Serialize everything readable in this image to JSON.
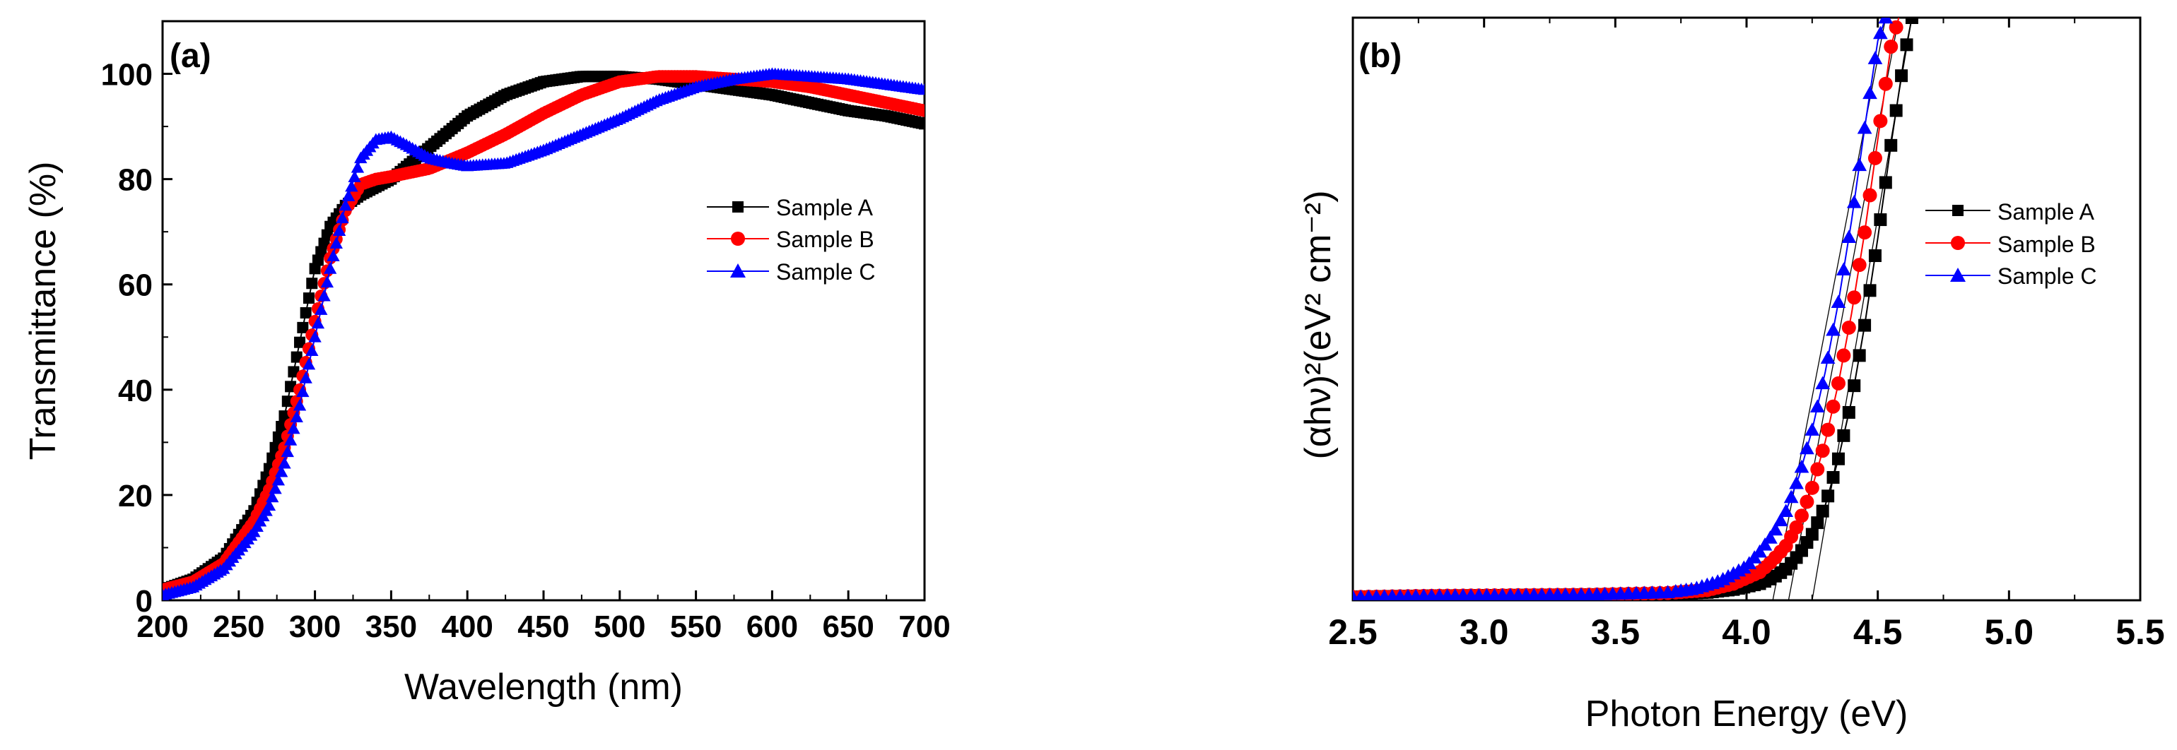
{
  "colors": {
    "sample_a": "#000000",
    "sample_b": "#ff0000",
    "sample_c": "#0000ff"
  },
  "chart_data": [
    {
      "type": "line",
      "panel_label": "(a)",
      "title": "",
      "xlabel": "Wavelength (nm)",
      "ylabel": "Transmittance (%)",
      "xlim": [
        200,
        700
      ],
      "ylim": [
        0,
        110
      ],
      "xticks": [
        "200",
        "250",
        "300",
        "350",
        "400",
        "450",
        "500",
        "550",
        "600",
        "650",
        "700"
      ],
      "yticks": [
        "0",
        "20",
        "40",
        "60",
        "80",
        "100"
      ],
      "xtick_values": [
        200,
        250,
        300,
        350,
        400,
        450,
        500,
        550,
        600,
        650,
        700
      ],
      "ytick_values": [
        0,
        20,
        40,
        60,
        80,
        100
      ],
      "legend_position": "right-upper",
      "series": [
        {
          "name": "Sample A",
          "marker": "square",
          "x": [
            200,
            220,
            240,
            260,
            270,
            280,
            290,
            300,
            310,
            320,
            330,
            340,
            350,
            375,
            400,
            425,
            450,
            475,
            500,
            525,
            550,
            575,
            600,
            625,
            650,
            675,
            700
          ],
          "y": [
            2,
            4,
            8,
            17,
            25,
            35,
            49,
            63,
            71,
            75,
            77,
            78.5,
            80,
            86,
            92,
            96,
            98.5,
            99.5,
            99.5,
            99,
            98,
            97,
            96,
            94.5,
            93,
            92,
            90.5
          ]
        },
        {
          "name": "Sample B",
          "marker": "circle",
          "x": [
            200,
            220,
            240,
            260,
            270,
            280,
            290,
            300,
            310,
            320,
            330,
            340,
            350,
            375,
            400,
            425,
            450,
            475,
            500,
            525,
            550,
            575,
            600,
            625,
            650,
            675,
            700
          ],
          "y": [
            2,
            3.5,
            7,
            15,
            21,
            29,
            40,
            53,
            65,
            74,
            79,
            80,
            80.5,
            82,
            85,
            88.5,
            92.5,
            96,
            98.5,
            99.5,
            99.5,
            99,
            98.5,
            97.5,
            96,
            94.5,
            93
          ]
        },
        {
          "name": "Sample C",
          "marker": "triangle",
          "x": [
            200,
            220,
            240,
            260,
            270,
            280,
            290,
            300,
            310,
            320,
            330,
            340,
            350,
            360,
            375,
            390,
            400,
            425,
            450,
            475,
            500,
            525,
            550,
            575,
            600,
            625,
            650,
            675,
            700
          ],
          "y": [
            1,
            2.5,
            6,
            13,
            18,
            26,
            37,
            50,
            63,
            75,
            84,
            87.5,
            88,
            86.5,
            84,
            83,
            82.5,
            83,
            85.5,
            88.5,
            91.5,
            95,
            97.5,
            99,
            100,
            99.5,
            99,
            98,
            97
          ]
        }
      ]
    },
    {
      "type": "line",
      "panel_label": "(b)",
      "title": "",
      "xlabel": "Photon Energy (eV)",
      "ylabel": "(αhν)²(eV² cm⁻²)",
      "xlim": [
        2.5,
        5.5
      ],
      "ylim": [
        0,
        1
      ],
      "xticks": [
        "2.5",
        "3.0",
        "3.5",
        "4.0",
        "4.5",
        "5.0",
        "5.5"
      ],
      "xtick_values": [
        2.5,
        3.0,
        3.5,
        4.0,
        4.5,
        5.0,
        5.5
      ],
      "yticks": [],
      "legend_position": "right-upper",
      "series": [
        {
          "name": "Sample A",
          "marker": "square",
          "x": [
            2.5,
            2.8,
            3.1,
            3.4,
            3.7,
            3.85,
            3.95,
            4.05,
            4.1,
            4.15,
            4.2,
            4.25,
            4.3,
            4.35,
            4.4,
            4.45,
            4.5,
            4.55,
            4.6,
            4.63
          ],
          "y": [
            0.002,
            0.004,
            0.005,
            0.006,
            0.008,
            0.01,
            0.015,
            0.025,
            0.035,
            0.05,
            0.075,
            0.11,
            0.16,
            0.24,
            0.34,
            0.47,
            0.62,
            0.78,
            0.93,
            1.0
          ]
        },
        {
          "name": "Sample B",
          "marker": "circle",
          "x": [
            2.5,
            2.8,
            3.1,
            3.4,
            3.7,
            3.85,
            3.95,
            4.05,
            4.1,
            4.15,
            4.2,
            4.25,
            4.3,
            4.35,
            4.4,
            4.45,
            4.5,
            4.55,
            4.58
          ],
          "y": [
            0.002,
            0.004,
            0.005,
            0.006,
            0.009,
            0.014,
            0.025,
            0.045,
            0.065,
            0.09,
            0.13,
            0.19,
            0.27,
            0.37,
            0.49,
            0.63,
            0.79,
            0.95,
            1.0
          ]
        },
        {
          "name": "Sample C",
          "marker": "triangle",
          "x": [
            2.5,
            2.8,
            3.1,
            3.4,
            3.7,
            3.8,
            3.9,
            4.0,
            4.05,
            4.1,
            4.15,
            4.2,
            4.25,
            4.3,
            4.35,
            4.4,
            4.45,
            4.5,
            4.53
          ],
          "y": [
            0.002,
            0.004,
            0.005,
            0.006,
            0.01,
            0.016,
            0.03,
            0.055,
            0.08,
            0.11,
            0.15,
            0.21,
            0.29,
            0.39,
            0.51,
            0.65,
            0.81,
            0.96,
            1.0
          ]
        }
      ],
      "tangent_lines": [
        {
          "series": "Sample A",
          "x_intercept": 4.25,
          "x_at_top": 4.63
        },
        {
          "series": "Sample B",
          "x_intercept": 4.16,
          "x_at_top": 4.58
        },
        {
          "series": "Sample C",
          "x_intercept": 4.1,
          "x_at_top": 4.53
        }
      ]
    }
  ]
}
